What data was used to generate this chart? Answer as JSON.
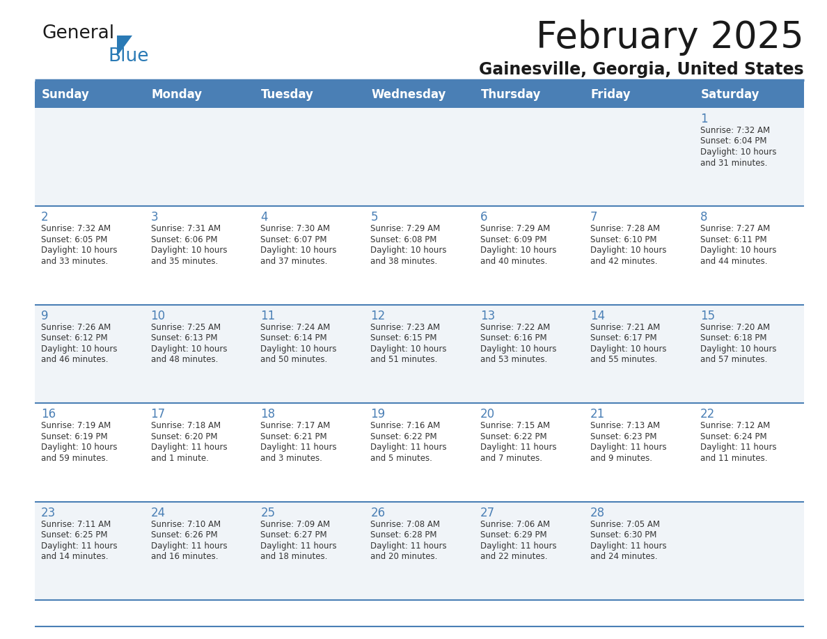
{
  "title": "February 2025",
  "subtitle": "Gainesville, Georgia, United States",
  "header_bg_color": "#4a7fb5",
  "header_text_color": "#ffffff",
  "day_names": [
    "Sunday",
    "Monday",
    "Tuesday",
    "Wednesday",
    "Thursday",
    "Friday",
    "Saturday"
  ],
  "title_color": "#1a1a1a",
  "subtitle_color": "#1a1a1a",
  "cell_bg_odd": "#f0f4f8",
  "cell_bg_even": "#ffffff",
  "border_color": "#4a7fb5",
  "day_number_color": "#4a7fb5",
  "cell_text_color": "#333333",
  "logo_general_color": "#1a1a1a",
  "logo_blue_color": "#2a7ab5",
  "logo_triangle_color": "#2a7ab5",
  "calendar": [
    [
      null,
      null,
      null,
      null,
      null,
      null,
      {
        "day": "1",
        "sunrise": "7:32 AM",
        "sunset": "6:04 PM",
        "daylight_line1": "10 hours",
        "daylight_line2": "and 31 minutes."
      }
    ],
    [
      {
        "day": "2",
        "sunrise": "7:32 AM",
        "sunset": "6:05 PM",
        "daylight_line1": "10 hours",
        "daylight_line2": "and 33 minutes."
      },
      {
        "day": "3",
        "sunrise": "7:31 AM",
        "sunset": "6:06 PM",
        "daylight_line1": "10 hours",
        "daylight_line2": "and 35 minutes."
      },
      {
        "day": "4",
        "sunrise": "7:30 AM",
        "sunset": "6:07 PM",
        "daylight_line1": "10 hours",
        "daylight_line2": "and 37 minutes."
      },
      {
        "day": "5",
        "sunrise": "7:29 AM",
        "sunset": "6:08 PM",
        "daylight_line1": "10 hours",
        "daylight_line2": "and 38 minutes."
      },
      {
        "day": "6",
        "sunrise": "7:29 AM",
        "sunset": "6:09 PM",
        "daylight_line1": "10 hours",
        "daylight_line2": "and 40 minutes."
      },
      {
        "day": "7",
        "sunrise": "7:28 AM",
        "sunset": "6:10 PM",
        "daylight_line1": "10 hours",
        "daylight_line2": "and 42 minutes."
      },
      {
        "day": "8",
        "sunrise": "7:27 AM",
        "sunset": "6:11 PM",
        "daylight_line1": "10 hours",
        "daylight_line2": "and 44 minutes."
      }
    ],
    [
      {
        "day": "9",
        "sunrise": "7:26 AM",
        "sunset": "6:12 PM",
        "daylight_line1": "10 hours",
        "daylight_line2": "and 46 minutes."
      },
      {
        "day": "10",
        "sunrise": "7:25 AM",
        "sunset": "6:13 PM",
        "daylight_line1": "10 hours",
        "daylight_line2": "and 48 minutes."
      },
      {
        "day": "11",
        "sunrise": "7:24 AM",
        "sunset": "6:14 PM",
        "daylight_line1": "10 hours",
        "daylight_line2": "and 50 minutes."
      },
      {
        "day": "12",
        "sunrise": "7:23 AM",
        "sunset": "6:15 PM",
        "daylight_line1": "10 hours",
        "daylight_line2": "and 51 minutes."
      },
      {
        "day": "13",
        "sunrise": "7:22 AM",
        "sunset": "6:16 PM",
        "daylight_line1": "10 hours",
        "daylight_line2": "and 53 minutes."
      },
      {
        "day": "14",
        "sunrise": "7:21 AM",
        "sunset": "6:17 PM",
        "daylight_line1": "10 hours",
        "daylight_line2": "and 55 minutes."
      },
      {
        "day": "15",
        "sunrise": "7:20 AM",
        "sunset": "6:18 PM",
        "daylight_line1": "10 hours",
        "daylight_line2": "and 57 minutes."
      }
    ],
    [
      {
        "day": "16",
        "sunrise": "7:19 AM",
        "sunset": "6:19 PM",
        "daylight_line1": "10 hours",
        "daylight_line2": "and 59 minutes."
      },
      {
        "day": "17",
        "sunrise": "7:18 AM",
        "sunset": "6:20 PM",
        "daylight_line1": "11 hours",
        "daylight_line2": "and 1 minute."
      },
      {
        "day": "18",
        "sunrise": "7:17 AM",
        "sunset": "6:21 PM",
        "daylight_line1": "11 hours",
        "daylight_line2": "and 3 minutes."
      },
      {
        "day": "19",
        "sunrise": "7:16 AM",
        "sunset": "6:22 PM",
        "daylight_line1": "11 hours",
        "daylight_line2": "and 5 minutes."
      },
      {
        "day": "20",
        "sunrise": "7:15 AM",
        "sunset": "6:22 PM",
        "daylight_line1": "11 hours",
        "daylight_line2": "and 7 minutes."
      },
      {
        "day": "21",
        "sunrise": "7:13 AM",
        "sunset": "6:23 PM",
        "daylight_line1": "11 hours",
        "daylight_line2": "and 9 minutes."
      },
      {
        "day": "22",
        "sunrise": "7:12 AM",
        "sunset": "6:24 PM",
        "daylight_line1": "11 hours",
        "daylight_line2": "and 11 minutes."
      }
    ],
    [
      {
        "day": "23",
        "sunrise": "7:11 AM",
        "sunset": "6:25 PM",
        "daylight_line1": "11 hours",
        "daylight_line2": "and 14 minutes."
      },
      {
        "day": "24",
        "sunrise": "7:10 AM",
        "sunset": "6:26 PM",
        "daylight_line1": "11 hours",
        "daylight_line2": "and 16 minutes."
      },
      {
        "day": "25",
        "sunrise": "7:09 AM",
        "sunset": "6:27 PM",
        "daylight_line1": "11 hours",
        "daylight_line2": "and 18 minutes."
      },
      {
        "day": "26",
        "sunrise": "7:08 AM",
        "sunset": "6:28 PM",
        "daylight_line1": "11 hours",
        "daylight_line2": "and 20 minutes."
      },
      {
        "day": "27",
        "sunrise": "7:06 AM",
        "sunset": "6:29 PM",
        "daylight_line1": "11 hours",
        "daylight_line2": "and 22 minutes."
      },
      {
        "day": "28",
        "sunrise": "7:05 AM",
        "sunset": "6:30 PM",
        "daylight_line1": "11 hours",
        "daylight_line2": "and 24 minutes."
      },
      null
    ]
  ]
}
